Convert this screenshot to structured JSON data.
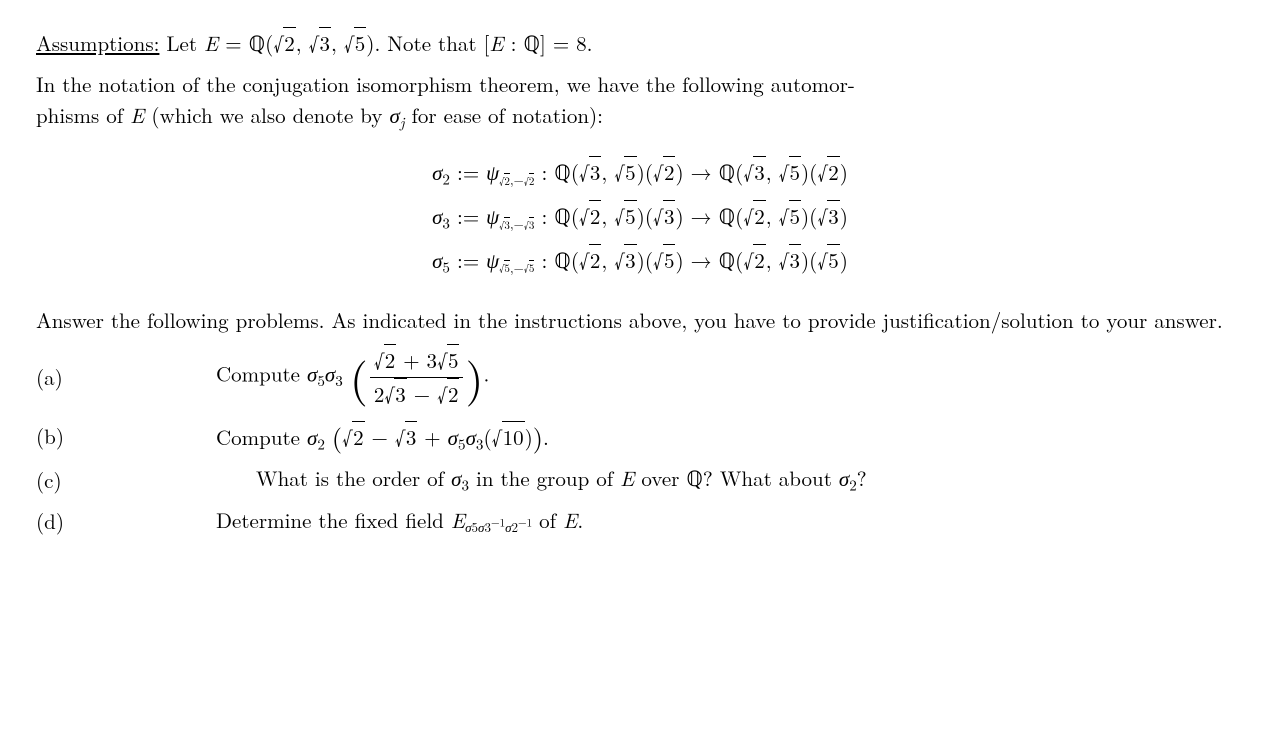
{
  "assumptions_label": "Assumptions:",
  "assumptions_text_1": " Let ",
  "E": "E",
  "eq": " = ",
  "Q": "ℚ",
  "sqrt2": "2",
  "sqrt3": "3",
  "sqrt5": "5",
  "note_text": ". Note that ",
  "degree_expr_open": "[",
  "colon": " : ",
  "degree_expr_close": "]",
  "eq8": " = 8.",
  "para2_a": "In the notation of the conjugation isomorphism theorem, we have the following automor-",
  "para2_b": "phisms of ",
  "para2_c": " (which we also denote by ",
  "sigma": "σ",
  "j": "j",
  "para2_d": " for ease of notation):",
  "def": " := ",
  "psi": "ψ",
  "arrow": " → ",
  "answer_para": "Answer the following problems. As indicated in the instructions above, you have to provide justification/solution to your answer.",
  "labels": {
    "a": "(a)",
    "b": "(b)",
    "c": "(c)",
    "d": "(d)"
  },
  "compute": "Compute ",
  "determine": "Determine the fixed field ",
  "of_E": " of ",
  "period": ".",
  "part_a_num_mid": " + 3",
  "part_a_den_pre": "2",
  "minus": " − ",
  "plus": " + ",
  "sqrt10": "10",
  "part_c_1": "What is the order of ",
  "part_c_2": " in the group of ",
  "part_c_3": " over ",
  "part_c_4": "? What about ",
  "part_c_5": "?",
  "inv": "−1",
  "two": "2",
  "three": "3",
  "five": "5"
}
